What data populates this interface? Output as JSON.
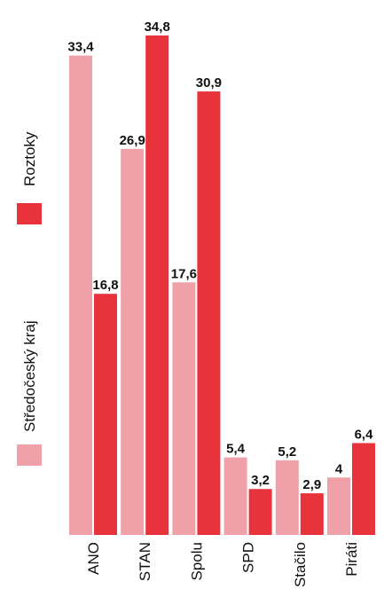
{
  "chart_data": {
    "type": "bar",
    "orientation": "vertical",
    "categories": [
      "ANO",
      "STAN",
      "Spolu",
      "SPD",
      "Stačilo",
      "Piráti"
    ],
    "series": [
      {
        "name": "Středočeský kraj",
        "color": "#f0a0a8",
        "values": [
          33.4,
          26.9,
          17.6,
          5.4,
          5.2,
          4
        ],
        "labels": [
          "33,4",
          "26,9",
          "17,6",
          "5,4",
          "5,2",
          "4"
        ]
      },
      {
        "name": "Roztoky",
        "color": "#e8323c",
        "values": [
          16.8,
          34.8,
          30.9,
          3.2,
          2.9,
          6.4
        ],
        "labels": [
          "16,8",
          "34,8",
          "30,9",
          "3,2",
          "2,9",
          "6,4"
        ]
      }
    ],
    "ylim": [
      0,
      34.8
    ],
    "grid": false,
    "legend": "left, rotated"
  }
}
